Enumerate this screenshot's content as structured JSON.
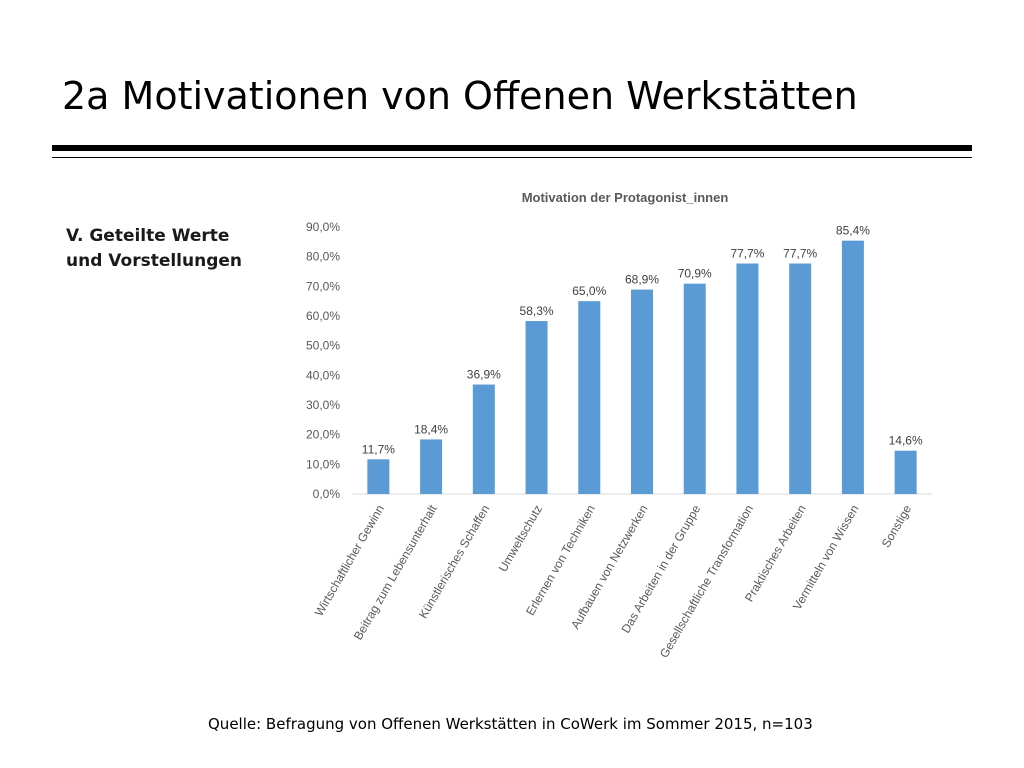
{
  "slide": {
    "title": "2a Motivationen von Offenen Werkstätten",
    "side_heading": [
      "V. Geteilte Werte",
      "und Vorstellungen"
    ],
    "source": "Quelle: Befragung von Offenen Werkstätten in CoWerk im Sommer 2015, n=103"
  },
  "chart_data": {
    "type": "bar",
    "title": "Motivation der Protagonist_innen",
    "categories": [
      "Wirtschaftlicher Gewinn",
      "Beitrag zum Lebensunterhalt",
      "Künstlerisches Schaffen",
      "Umweltschutz",
      "Erlernen von Techniken",
      "Aufbauen von Netzwerken",
      "Das Arbeiten in der Gruppe",
      "Gesellschaftliche Transformation",
      "Praktisches Arbeiten",
      "Vermitteln von Wissen",
      "Sonstige"
    ],
    "values": [
      11.7,
      18.4,
      36.9,
      58.3,
      65.0,
      68.9,
      70.9,
      77.7,
      77.7,
      85.4,
      14.6
    ],
    "data_labels": [
      "11,7%",
      "18,4%",
      "36,9%",
      "58,3%",
      "65,0%",
      "68,9%",
      "70,9%",
      "77,7%",
      "77,7%",
      "85,4%",
      "14,6%"
    ],
    "yticks": [
      "0,0%",
      "10,0%",
      "20,0%",
      "30,0%",
      "40,0%",
      "50,0%",
      "60,0%",
      "70,0%",
      "80,0%",
      "90,0%"
    ],
    "ylim": [
      0,
      90
    ],
    "grid": false,
    "legend": "none",
    "bar_color": "#5b9bd5",
    "axis_color": "#d9d9d9"
  }
}
